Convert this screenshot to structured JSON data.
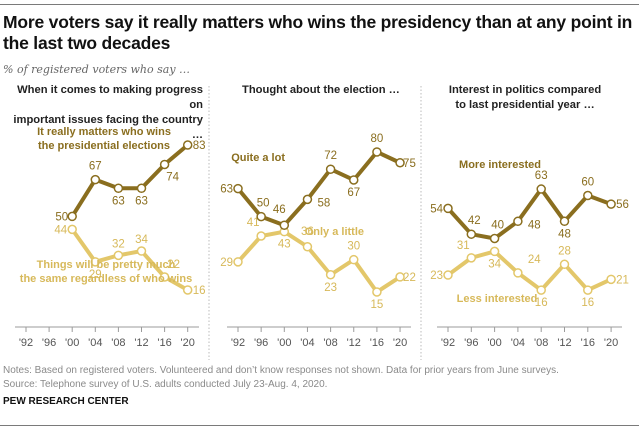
{
  "title": "More voters say it really matters who wins the presidency than at any point in the last two decades",
  "subtitle": "% of registered voters who say …",
  "notes": "Notes: Based on registered voters. Volunteered and don’t know responses not shown. Data for prior years from June surveys.",
  "source": "Source: Telephone survey of U.S. adults conducted July 23-Aug. 4, 2020.",
  "brand": "PEW RESEARCH CENTER",
  "colors": {
    "dark": "#8a6e1f",
    "light": "#e3c76a",
    "axis": "#9b9b9b",
    "label_dark": "#8a6e1f",
    "label_light": "#d7b95a"
  },
  "panels": [
    {
      "title_lines": [
        "When it comes to making progress on",
        "important issues facing the country …"
      ]
    },
    {
      "title_lines": [
        "Thought about the election …"
      ]
    },
    {
      "title_lines": [
        "Interest in politics compared",
        "to last presidential year …"
      ]
    }
  ],
  "chart_data": [
    {
      "type": "line",
      "title": "When it comes to making progress on important issues facing the country …",
      "x": [
        "'92",
        "'96",
        "'00",
        "'04",
        "'08",
        "'12",
        "'16",
        "'20"
      ],
      "ylim": [
        0,
        100
      ],
      "grid": false,
      "series": [
        {
          "name": "It really matters who wins the presidential elections",
          "label_lines": [
            "It really matters who wins",
            "the presidential elections"
          ],
          "color": "dark",
          "values": [
            null,
            null,
            50,
            67,
            63,
            63,
            74,
            83
          ]
        },
        {
          "name": "Things will be pretty much the same regardless of who wins",
          "label_lines": [
            "Things will be pretty much",
            "the same regardless of who wins"
          ],
          "color": "light",
          "values": [
            null,
            null,
            44,
            29,
            32,
            34,
            22,
            16
          ]
        }
      ]
    },
    {
      "type": "line",
      "title": "Thought about the election …",
      "x": [
        "'92",
        "'96",
        "'00",
        "'04",
        "'08",
        "'12",
        "'16",
        "'20"
      ],
      "ylim": [
        0,
        100
      ],
      "grid": false,
      "series": [
        {
          "name": "Quite a lot",
          "label_lines": [
            "Quite a lot"
          ],
          "color": "dark",
          "values": [
            63,
            50,
            46,
            58,
            72,
            67,
            80,
            75
          ]
        },
        {
          "name": "Only a little",
          "label_lines": [
            "Only a little"
          ],
          "color": "light",
          "values": [
            29,
            41,
            43,
            36,
            23,
            30,
            15,
            22
          ]
        }
      ]
    },
    {
      "type": "line",
      "title": "Interest in politics compared to last presidential year …",
      "x": [
        "'92",
        "'96",
        "'00",
        "'04",
        "'08",
        "'12",
        "'16",
        "'20"
      ],
      "ylim": [
        0,
        100
      ],
      "grid": false,
      "series": [
        {
          "name": "More interested",
          "label_lines": [
            "More interested"
          ],
          "color": "dark",
          "values": [
            54,
            42,
            40,
            48,
            63,
            48,
            60,
            56
          ]
        },
        {
          "name": "Less interested",
          "label_lines": [
            "Less interested"
          ],
          "color": "light",
          "values": [
            23,
            31,
            34,
            24,
            16,
            28,
            16,
            21
          ]
        }
      ]
    }
  ]
}
